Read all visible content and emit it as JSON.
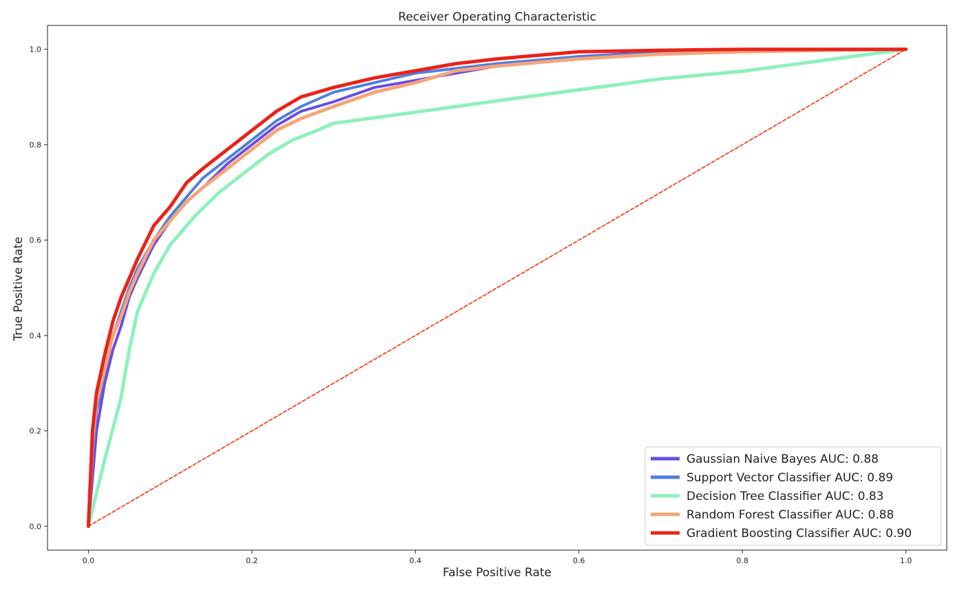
{
  "chart_data": {
    "type": "line",
    "title": "Receiver Operating Characteristic",
    "xlabel": "False Positive Rate",
    "ylabel": "True Positive Rate",
    "xlim": [
      -0.05,
      1.05
    ],
    "ylim": [
      -0.05,
      1.05
    ],
    "xticks": [
      "0.0",
      "0.2",
      "0.4",
      "0.6",
      "0.8",
      "1.0"
    ],
    "yticks": [
      "0.0",
      "0.2",
      "0.4",
      "0.6",
      "0.8",
      "1.0"
    ],
    "grid": false,
    "legend_position": "lower-right",
    "series": [
      {
        "name": "Gaussian Naive Bayes AUC: 0.88",
        "color": "#6a4ce6",
        "x": [
          0,
          0.005,
          0.01,
          0.02,
          0.03,
          0.04,
          0.05,
          0.06,
          0.08,
          0.1,
          0.12,
          0.14,
          0.17,
          0.2,
          0.23,
          0.26,
          0.3,
          0.35,
          0.4,
          0.45,
          0.5,
          0.6,
          0.7,
          0.8,
          0.9,
          1.0
        ],
        "y": [
          0,
          0.1,
          0.2,
          0.3,
          0.37,
          0.42,
          0.48,
          0.52,
          0.59,
          0.64,
          0.68,
          0.71,
          0.76,
          0.8,
          0.84,
          0.87,
          0.89,
          0.92,
          0.935,
          0.95,
          0.965,
          0.985,
          0.995,
          0.998,
          1.0,
          1.0
        ]
      },
      {
        "name": "Support Vector Classifier AUC: 0.89",
        "color": "#4f7fe0",
        "x": [
          0,
          0.005,
          0.01,
          0.02,
          0.03,
          0.04,
          0.05,
          0.06,
          0.08,
          0.1,
          0.12,
          0.14,
          0.17,
          0.2,
          0.23,
          0.26,
          0.3,
          0.35,
          0.4,
          0.5,
          0.6,
          0.7,
          0.8,
          0.9,
          1.0
        ],
        "y": [
          0,
          0.15,
          0.24,
          0.32,
          0.4,
          0.45,
          0.5,
          0.54,
          0.6,
          0.65,
          0.69,
          0.73,
          0.77,
          0.81,
          0.85,
          0.88,
          0.91,
          0.93,
          0.95,
          0.97,
          0.985,
          0.993,
          0.998,
          1.0,
          1.0
        ]
      },
      {
        "name": "Decision Tree Classifier AUC: 0.83",
        "color": "#8ef0bc",
        "x": [
          0,
          0.02,
          0.04,
          0.05,
          0.06,
          0.08,
          0.1,
          0.13,
          0.16,
          0.19,
          0.22,
          0.25,
          0.28,
          0.3,
          0.4,
          0.5,
          0.6,
          0.7,
          0.8,
          0.9,
          1.0
        ],
        "y": [
          0,
          0.14,
          0.27,
          0.37,
          0.45,
          0.53,
          0.59,
          0.65,
          0.7,
          0.74,
          0.78,
          0.81,
          0.83,
          0.845,
          0.868,
          0.892,
          0.915,
          0.938,
          0.954,
          0.977,
          1.0
        ]
      },
      {
        "name": "Random Forest Classifier AUC: 0.88",
        "color": "#f4a578",
        "x": [
          0,
          0.005,
          0.01,
          0.02,
          0.03,
          0.04,
          0.05,
          0.06,
          0.08,
          0.1,
          0.12,
          0.14,
          0.17,
          0.2,
          0.23,
          0.26,
          0.3,
          0.35,
          0.4,
          0.45,
          0.5,
          0.6,
          0.7,
          0.8,
          0.9,
          1.0
        ],
        "y": [
          0,
          0.18,
          0.26,
          0.33,
          0.4,
          0.44,
          0.49,
          0.53,
          0.6,
          0.64,
          0.68,
          0.71,
          0.75,
          0.79,
          0.83,
          0.855,
          0.88,
          0.91,
          0.93,
          0.955,
          0.965,
          0.98,
          0.99,
          0.995,
          0.998,
          1.0
        ]
      },
      {
        "name": "Gradient Boosting Classifier AUC: 0.90",
        "color": "#e8231a",
        "x": [
          0,
          0.005,
          0.01,
          0.02,
          0.03,
          0.04,
          0.05,
          0.06,
          0.08,
          0.1,
          0.12,
          0.14,
          0.17,
          0.2,
          0.23,
          0.26,
          0.3,
          0.35,
          0.4,
          0.45,
          0.5,
          0.6,
          0.7,
          0.8,
          0.9,
          1.0
        ],
        "y": [
          0,
          0.2,
          0.28,
          0.36,
          0.43,
          0.48,
          0.52,
          0.56,
          0.63,
          0.67,
          0.72,
          0.75,
          0.79,
          0.83,
          0.87,
          0.9,
          0.92,
          0.94,
          0.955,
          0.97,
          0.98,
          0.995,
          0.998,
          1.0,
          1.0,
          1.0
        ]
      },
      {
        "name": "",
        "color": "#ff2a00",
        "dashed": true,
        "x": [
          0,
          1
        ],
        "y": [
          0,
          1
        ]
      }
    ]
  }
}
